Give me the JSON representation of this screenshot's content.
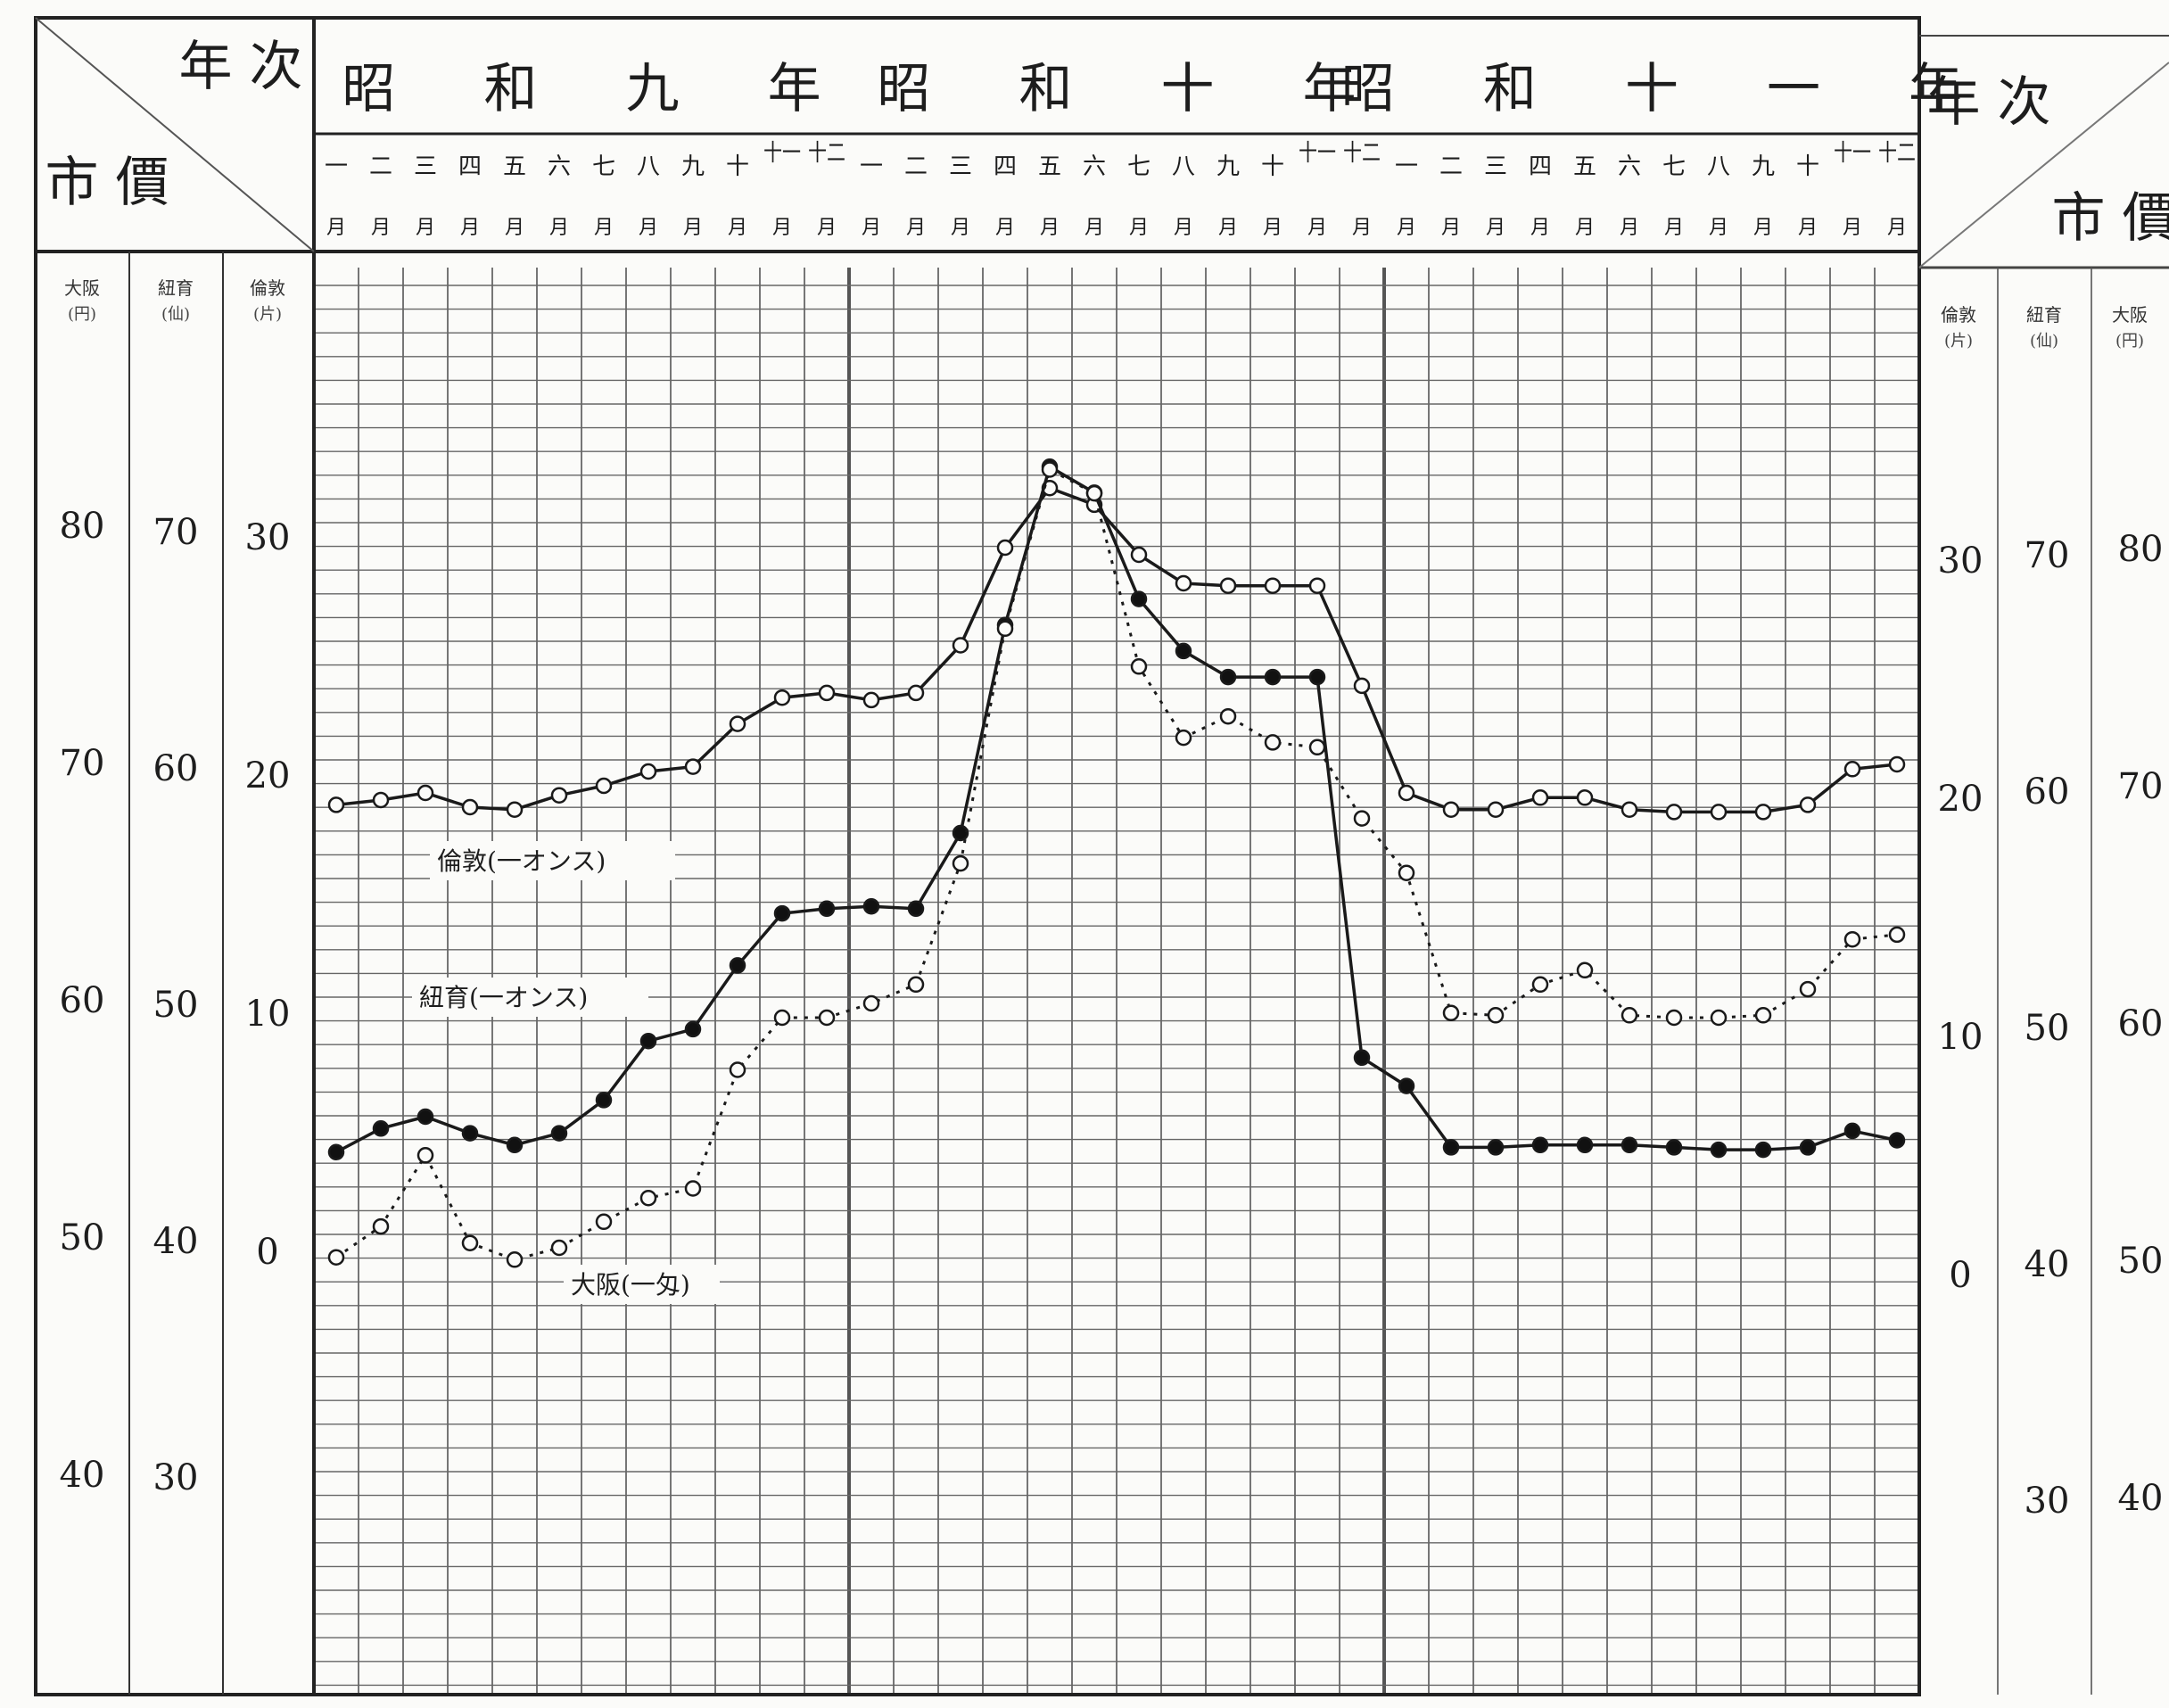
{
  "header": {
    "corner_left": {
      "top": "年 次",
      "bottom": "市 價"
    },
    "corner_right": {
      "top": "年 次",
      "bottom": "市 價"
    },
    "years": [
      "昭 和 九 年",
      "昭 和 十 年",
      "昭 和 十 一 年"
    ],
    "months": [
      {
        "top": "一",
        "bottom": "月"
      },
      {
        "top": "二",
        "bottom": "月"
      },
      {
        "top": "三",
        "bottom": "月"
      },
      {
        "top": "四",
        "bottom": "月"
      },
      {
        "top": "五",
        "bottom": "月"
      },
      {
        "top": "六",
        "bottom": "月"
      },
      {
        "top": "七",
        "bottom": "月"
      },
      {
        "top": "八",
        "bottom": "月"
      },
      {
        "top": "九",
        "bottom": "月"
      },
      {
        "top": "十",
        "bottom": "月"
      },
      {
        "top": "十一",
        "bottom": "月"
      },
      {
        "top": "十二",
        "bottom": "月"
      }
    ]
  },
  "axis_columns": {
    "osaka": {
      "name": "大阪",
      "unit": "(円)"
    },
    "keiki": {
      "name": "紐育",
      "unit": "(仙)"
    },
    "rondon": {
      "name": "倫敦",
      "unit": "(片)"
    }
  },
  "chart_data": {
    "type": "line",
    "x": [
      "1934-01",
      "1934-02",
      "1934-03",
      "1934-04",
      "1934-05",
      "1934-06",
      "1934-07",
      "1934-08",
      "1934-09",
      "1934-10",
      "1934-11",
      "1934-12",
      "1935-01",
      "1935-02",
      "1935-03",
      "1935-04",
      "1935-05",
      "1935-06",
      "1935-07",
      "1935-08",
      "1935-09",
      "1935-10",
      "1935-11",
      "1935-12",
      "1936-01",
      "1936-02",
      "1936-03",
      "1936-04",
      "1936-05",
      "1936-06",
      "1936-07",
      "1936-08",
      "1936-09",
      "1936-10",
      "1936-11",
      "1936-12"
    ],
    "axes": {
      "london_pence": {
        "ticks": [
          0,
          10,
          20,
          30
        ]
      },
      "newyork_cents": {
        "ticks": [
          30,
          40,
          50,
          60,
          70
        ]
      },
      "osaka_yen": {
        "ticks": [
          40,
          50,
          60,
          70,
          80
        ]
      }
    },
    "series": [
      {
        "name": "倫敦(一オンス)",
        "axis": "london_pence",
        "marker": "open-circle",
        "line": "solid",
        "values": [
          19.5,
          19.7,
          20.0,
          19.4,
          19.3,
          19.9,
          20.3,
          20.9,
          21.1,
          22.9,
          24.0,
          24.2,
          23.9,
          24.2,
          26.2,
          30.3,
          32.8,
          32.1,
          30.0,
          28.8,
          28.7,
          28.7,
          28.7,
          24.5,
          20.0,
          19.3,
          19.3,
          19.8,
          19.8,
          19.3,
          19.2,
          19.2,
          19.2,
          19.5,
          21.0,
          21.2
        ]
      },
      {
        "name": "紐育(一オンス)",
        "axis": "newyork_cents",
        "marker": "filled-circle",
        "line": "solid",
        "values": [
          44.5,
          45.5,
          46.0,
          45.3,
          44.8,
          45.3,
          46.7,
          49.2,
          49.7,
          52.4,
          54.6,
          54.8,
          54.9,
          54.8,
          58.0,
          66.8,
          73.5,
          72.4,
          67.9,
          65.7,
          64.6,
          64.6,
          64.6,
          48.5,
          47.3,
          44.7,
          44.7,
          44.8,
          44.8,
          44.8,
          44.7,
          44.6,
          44.6,
          44.7,
          45.4,
          45.0
        ]
      },
      {
        "name": "大阪(一匁)",
        "axis": "osaka_yen",
        "marker": "open-circle",
        "line": "dotted",
        "values": [
          49.9,
          51.2,
          54.2,
          50.5,
          49.8,
          50.3,
          51.4,
          52.4,
          52.8,
          57.8,
          60.0,
          60.0,
          60.6,
          61.4,
          66.5,
          76.4,
          83.1,
          82.1,
          74.8,
          71.8,
          72.7,
          71.6,
          71.4,
          68.4,
          66.1,
          60.2,
          60.1,
          61.4,
          62.0,
          60.1,
          60.0,
          60.0,
          60.1,
          61.2,
          63.3,
          63.5
        ]
      }
    ],
    "legend_placement": "inline labels near series"
  }
}
